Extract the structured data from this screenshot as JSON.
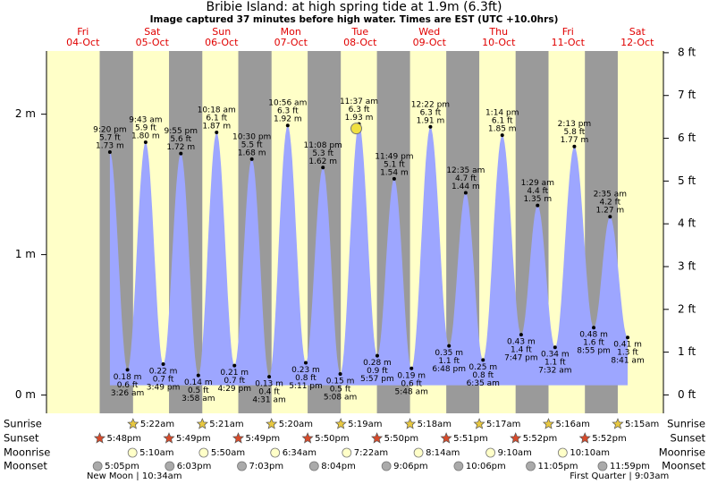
{
  "chart_data": {
    "type": "area",
    "title": "Bribie Island: at high  spring tide at 1.9m (6.3ft)",
    "subtitle": "Image captured 37 minutes before high water. Times are EST (UTC +10.0hrs)",
    "ylim": [
      -0.13,
      2.45
    ],
    "yticks": [
      {
        "value": 0,
        "label": "0 m"
      },
      {
        "value": 1,
        "label": "1 m"
      },
      {
        "value": 2,
        "label": "2 m"
      }
    ],
    "y2lim": [
      -0.43,
      8.04
    ],
    "y2ticks": [
      {
        "value": 0,
        "label": "0 ft"
      },
      {
        "value": 1,
        "label": "1 ft"
      },
      {
        "value": 2,
        "label": "2 ft"
      },
      {
        "value": 3,
        "label": "3 ft"
      },
      {
        "value": 4,
        "label": "4 ft"
      },
      {
        "value": 5,
        "label": "5 ft"
      },
      {
        "value": 6,
        "label": "6 ft"
      },
      {
        "value": 7,
        "label": "7 ft"
      },
      {
        "value": 8,
        "label": "8 ft"
      }
    ],
    "colors": {
      "day": "#ffffc8",
      "night": "#9a9a9a",
      "tide": "#9da6ff",
      "day_label": "#e00000",
      "sunrise": "#e8c840",
      "sunset": "#d84a2a",
      "moonrise": "#ffffc8",
      "moonset": "#aaaaaa"
    },
    "rows": [
      "Sunrise",
      "Sunset",
      "Moonrise",
      "Moonset"
    ],
    "days": [
      {
        "day": "Fri",
        "date": "04-Oct",
        "sunset": "5:48pm",
        "moonset": "5:05pm",
        "tides": [
          {
            "time": "9:20 pm",
            "m": 1.73,
            "m_label": "1.73 m",
            "ft_label": "5.7 ft"
          }
        ]
      },
      {
        "day": "Sat",
        "date": "05-Oct",
        "sunrise": "5:22am",
        "sunset": "5:49pm",
        "moonrise": "5:10am",
        "moonset": "6:03pm",
        "note": "New Moon | 10:34am",
        "tides": [
          {
            "time": "3:26 am",
            "m": 0.18,
            "m_label": "0.18 m",
            "ft_label": "0.6 ft"
          },
          {
            "time": "9:43 am",
            "m": 1.8,
            "m_label": "1.80 m",
            "ft_label": "5.9 ft"
          },
          {
            "time": "3:49 pm",
            "m": 0.22,
            "m_label": "0.22 m",
            "ft_label": "0.7 ft"
          },
          {
            "time": "9:55 pm",
            "m": 1.72,
            "m_label": "1.72 m",
            "ft_label": "5.6 ft"
          }
        ]
      },
      {
        "day": "Sun",
        "date": "06-Oct",
        "sunrise": "5:21am",
        "sunset": "5:49pm",
        "moonrise": "5:50am",
        "moonset": "7:03pm",
        "tides": [
          {
            "time": "3:58 am",
            "m": 0.14,
            "m_label": "0.14 m",
            "ft_label": "0.5 ft"
          },
          {
            "time": "10:18 am",
            "m": 1.87,
            "m_label": "1.87 m",
            "ft_label": "6.1 ft"
          },
          {
            "time": "4:29 pm",
            "m": 0.21,
            "m_label": "0.21 m",
            "ft_label": "0.7 ft"
          },
          {
            "time": "10:30 pm",
            "m": 1.68,
            "m_label": "1.68 m",
            "ft_label": "5.5 ft"
          }
        ]
      },
      {
        "day": "Mon",
        "date": "07-Oct",
        "sunrise": "5:20am",
        "sunset": "5:50pm",
        "moonrise": "6:34am",
        "moonset": "8:04pm",
        "tides": [
          {
            "time": "4:31 am",
            "m": 0.13,
            "m_label": "0.13 m",
            "ft_label": "0.4 ft"
          },
          {
            "time": "10:56 am",
            "m": 1.92,
            "m_label": "1.92 m",
            "ft_label": "6.3 ft"
          },
          {
            "time": "5:11 pm",
            "m": 0.23,
            "m_label": "0.23 m",
            "ft_label": "0.8 ft"
          },
          {
            "time": "11:08 pm",
            "m": 1.62,
            "m_label": "1.62 m",
            "ft_label": "5.3 ft"
          }
        ]
      },
      {
        "day": "Tue",
        "date": "08-Oct",
        "sunrise": "5:19am",
        "sunset": "5:50pm",
        "moonrise": "7:22am",
        "moonset": "9:06pm",
        "tides": [
          {
            "time": "5:08 am",
            "m": 0.15,
            "m_label": "0.15 m",
            "ft_label": "0.5 ft"
          },
          {
            "time": "11:37 am",
            "m": 1.93,
            "m_label": "1.93 m",
            "ft_label": "6.3 ft"
          },
          {
            "time": "5:57 pm",
            "m": 0.28,
            "m_label": "0.28 m",
            "ft_label": "0.9 ft"
          },
          {
            "time": "11:49 pm",
            "m": 1.54,
            "m_label": "1.54 m",
            "ft_label": "5.1 ft"
          }
        ]
      },
      {
        "day": "Wed",
        "date": "09-Oct",
        "sunrise": "5:18am",
        "sunset": "5:51pm",
        "moonrise": "8:14am",
        "moonset": "10:06pm",
        "tides": [
          {
            "time": "5:48 am",
            "m": 0.19,
            "m_label": "0.19 m",
            "ft_label": "0.6 ft"
          },
          {
            "time": "12:22 pm",
            "m": 1.91,
            "m_label": "1.91 m",
            "ft_label": "6.3 ft"
          },
          {
            "time": "6:48 pm",
            "m": 0.35,
            "m_label": "0.35 m",
            "ft_label": "1.1 ft"
          }
        ]
      },
      {
        "day": "Thu",
        "date": "10-Oct",
        "sunrise": "5:17am",
        "sunset": "5:52pm",
        "moonrise": "9:10am",
        "moonset": "11:05pm",
        "tides": [
          {
            "time": "12:35 am",
            "m": 1.44,
            "m_label": "1.44 m",
            "ft_label": "4.7 ft"
          },
          {
            "time": "6:35 am",
            "m": 0.25,
            "m_label": "0.25 m",
            "ft_label": "0.8 ft"
          },
          {
            "time": "1:14 pm",
            "m": 1.85,
            "m_label": "1.85 m",
            "ft_label": "6.1 ft"
          },
          {
            "time": "7:47 pm",
            "m": 0.43,
            "m_label": "0.43 m",
            "ft_label": "1.4 ft"
          }
        ]
      },
      {
        "day": "Fri",
        "date": "11-Oct",
        "sunrise": "5:16am",
        "sunset": "5:52pm",
        "moonrise": "10:10am",
        "moonset": "11:59pm",
        "tides": [
          {
            "time": "1:29 am",
            "m": 1.35,
            "m_label": "1.35 m",
            "ft_label": "4.4 ft"
          },
          {
            "time": "7:32 am",
            "m": 0.34,
            "m_label": "0.34 m",
            "ft_label": "1.1 ft"
          },
          {
            "time": "2:13 pm",
            "m": 1.77,
            "m_label": "1.77 m",
            "ft_label": "5.8 ft"
          },
          {
            "time": "8:55 pm",
            "m": 0.48,
            "m_label": "0.48 m",
            "ft_label": "1.6 ft"
          }
        ]
      },
      {
        "day": "Sat",
        "date": "12-Oct",
        "sunrise": "5:15am",
        "note": "First Quarter | 9:03am",
        "tides": [
          {
            "time": "2:35 am",
            "m": 1.27,
            "m_label": "1.27 m",
            "ft_label": "4.2 ft"
          },
          {
            "time": "8:41 am",
            "m": 0.41,
            "m_label": "0.41 m",
            "ft_label": "1.3 ft"
          }
        ]
      }
    ]
  }
}
